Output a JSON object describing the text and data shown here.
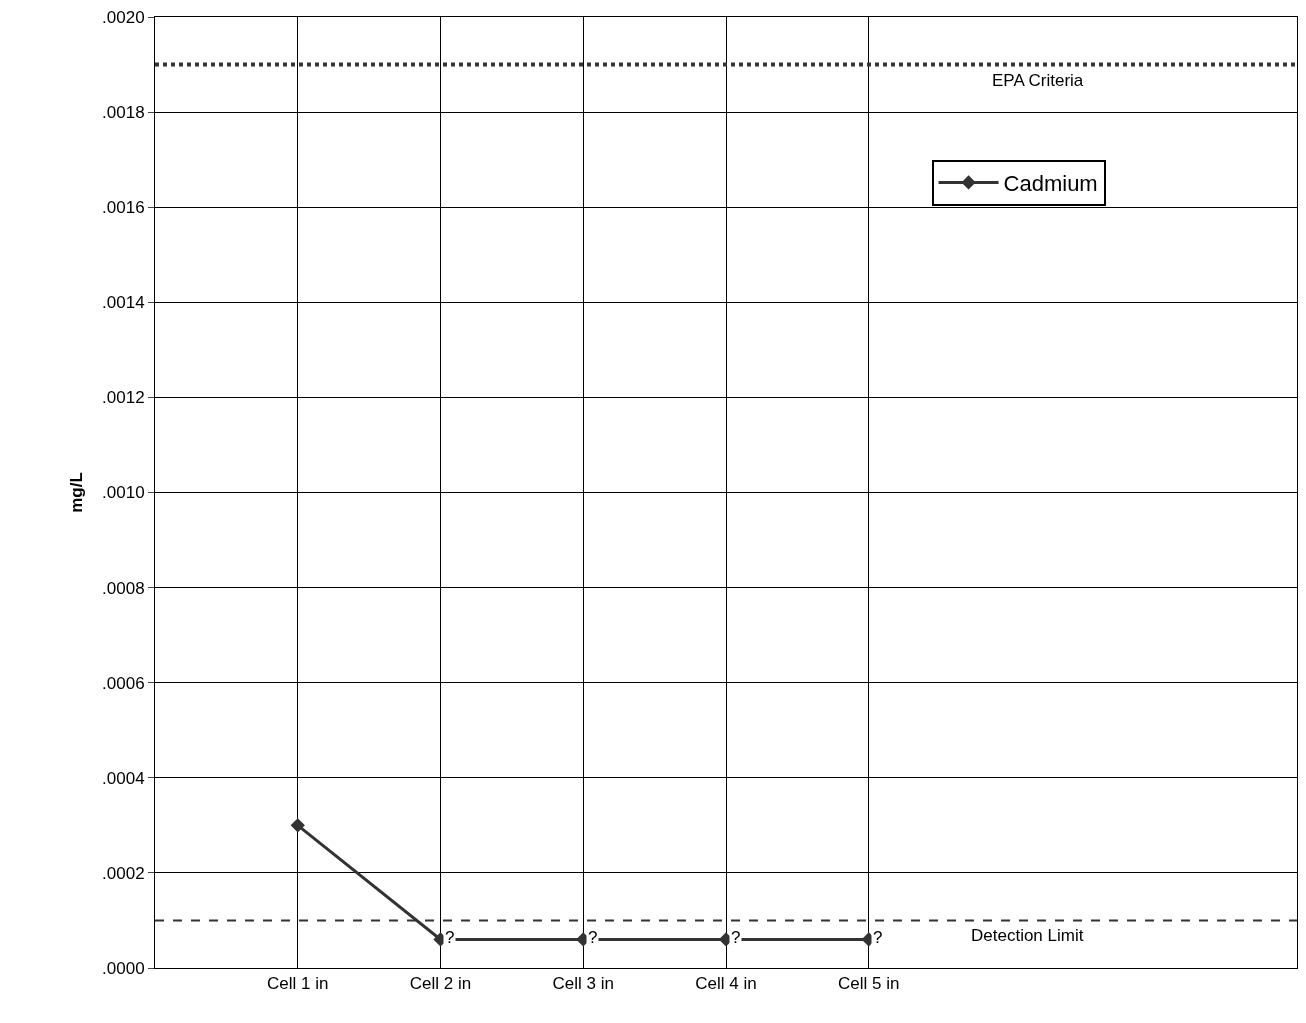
{
  "chart_data": {
    "type": "line",
    "ylabel": "mg/L",
    "categories": [
      "Cell 1 in",
      "Cell 2 in",
      "Cell 3 in",
      "Cell 4 in",
      "Cell 5 in"
    ],
    "series": [
      {
        "name": "Cadmium",
        "color": "#333333",
        "values": [
          0.0003,
          6e-05,
          6e-05,
          6e-05,
          6e-05
        ]
      }
    ],
    "ylim": [
      0,
      0.002
    ],
    "yticks": [
      {
        "value": 0,
        "label": ".0000"
      },
      {
        "value": 0.0002,
        "label": ".0002"
      },
      {
        "value": 0.0004,
        "label": ".0004"
      },
      {
        "value": 0.0006,
        "label": ".0006"
      },
      {
        "value": 0.0008,
        "label": ".0008"
      },
      {
        "value": 0.001,
        "label": ".0010"
      },
      {
        "value": 0.0012,
        "label": ".0012"
      },
      {
        "value": 0.0014,
        "label": ".0014"
      },
      {
        "value": 0.0016,
        "label": ".0016"
      },
      {
        "value": 0.0018,
        "label": ".0018"
      },
      {
        "value": 0.002,
        "label": ".0020"
      }
    ],
    "ref_lines": [
      {
        "axis": "y",
        "value": 0.0019,
        "label": "EPA Criteria",
        "color": "#333333",
        "line_style": "dotted"
      },
      {
        "axis": "y",
        "value": 0.0001,
        "label": "Detection Limit",
        "color": "#333333",
        "line_style": "dashed"
      }
    ],
    "annotations": [
      {
        "text": "?",
        "x": "Cell 2 in",
        "y": 6e-05
      },
      {
        "text": "?",
        "x": "Cell 3 in",
        "y": 6e-05
      },
      {
        "text": "?",
        "x": "Cell 4 in",
        "y": 6e-05
      },
      {
        "text": "?",
        "x": "Cell 5 in",
        "y": 6e-05
      }
    ],
    "grid": true,
    "legend": "top right",
    "marker": "diamond",
    "line_style": "solid"
  }
}
